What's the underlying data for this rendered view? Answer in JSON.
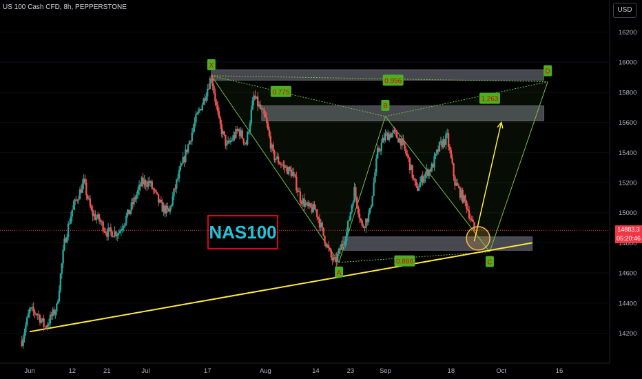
{
  "header": {
    "symbol": "US 100 Cash CFD, 8h, PEPPERSTONE",
    "currency": "USD"
  },
  "price_tag": {
    "last_price": "14883.3",
    "countdown": "05:20:46"
  },
  "label": "NAS100",
  "colors": {
    "background": "#000000",
    "up_candle": "#26a69a",
    "down_candle": "#ef5350",
    "trendline": "#ffeb3b",
    "pattern": "#76c442",
    "zone": "#7f8290",
    "last_price": "#f23645"
  },
  "chart_data": {
    "type": "candlestick",
    "title": "US 100 Cash CFD, 8h, PEPPERSTONE",
    "ylim": [
      14000,
      16300
    ],
    "y_ticks": [
      14200,
      14400,
      14600,
      14800,
      15000,
      15200,
      15400,
      15600,
      15800,
      16000,
      16200
    ],
    "x_ticks": [
      {
        "label": "Jun",
        "x": "2023-06-01"
      },
      {
        "label": "12",
        "x": "2023-06-12"
      },
      {
        "label": "21",
        "x": "2023-06-21"
      },
      {
        "label": "Jul",
        "x": "2023-07-01"
      },
      {
        "label": "17",
        "x": "2023-07-17"
      },
      {
        "label": "Aug",
        "x": "2023-08-01"
      },
      {
        "label": "14",
        "x": "2023-08-14"
      },
      {
        "label": "23",
        "x": "2023-08-23"
      },
      {
        "label": "Sep",
        "x": "2023-09-01"
      },
      {
        "label": "18",
        "x": "2023-09-18"
      },
      {
        "label": "Oct",
        "x": "2023-10-01"
      },
      {
        "label": "16",
        "x": "2023-10-16"
      }
    ],
    "price_path": [
      [
        "2023-05-30",
        14150
      ],
      [
        "2023-06-01",
        14350
      ],
      [
        "2023-06-03",
        14330
      ],
      [
        "2023-06-05",
        14240
      ],
      [
        "2023-06-08",
        14370
      ],
      [
        "2023-06-10",
        14800
      ],
      [
        "2023-06-12",
        15020
      ],
      [
        "2023-06-15",
        15200
      ],
      [
        "2023-06-17",
        15000
      ],
      [
        "2023-06-19",
        14950
      ],
      [
        "2023-06-21",
        14870
      ],
      [
        "2023-06-24",
        14870
      ],
      [
        "2023-06-27",
        15020
      ],
      [
        "2023-06-30",
        15200
      ],
      [
        "2023-07-02",
        15200
      ],
      [
        "2023-07-05",
        15040
      ],
      [
        "2023-07-07",
        15000
      ],
      [
        "2023-07-09",
        15200
      ],
      [
        "2023-07-12",
        15450
      ],
      [
        "2023-07-14",
        15620
      ],
      [
        "2023-07-16",
        15750
      ],
      [
        "2023-07-18",
        15910
      ],
      [
        "2023-07-20",
        15600
      ],
      [
        "2023-07-22",
        15440
      ],
      [
        "2023-07-25",
        15550
      ],
      [
        "2023-07-27",
        15460
      ],
      [
        "2023-07-29",
        15770
      ],
      [
        "2023-08-01",
        15620
      ],
      [
        "2023-08-03",
        15380
      ],
      [
        "2023-08-06",
        15300
      ],
      [
        "2023-08-08",
        15260
      ],
      [
        "2023-08-10",
        15100
      ],
      [
        "2023-08-12",
        15030
      ],
      [
        "2023-08-14",
        15020
      ],
      [
        "2023-08-16",
        14850
      ],
      [
        "2023-08-18",
        14700
      ],
      [
        "2023-08-19",
        14670
      ],
      [
        "2023-08-21",
        14800
      ],
      [
        "2023-08-22",
        14870
      ],
      [
        "2023-08-24",
        15150
      ],
      [
        "2023-08-26",
        14900
      ],
      [
        "2023-08-28",
        15000
      ],
      [
        "2023-08-30",
        15400
      ],
      [
        "2023-09-01",
        15510
      ],
      [
        "2023-09-03",
        15530
      ],
      [
        "2023-09-05",
        15480
      ],
      [
        "2023-09-07",
        15350
      ],
      [
        "2023-09-09",
        15150
      ],
      [
        "2023-09-11",
        15250
      ],
      [
        "2023-09-13",
        15300
      ],
      [
        "2023-09-15",
        15440
      ],
      [
        "2023-09-17",
        15500
      ],
      [
        "2023-09-19",
        15200
      ],
      [
        "2023-09-20",
        15150
      ],
      [
        "2023-09-22",
        15050
      ],
      [
        "2023-09-24",
        14883
      ]
    ],
    "last_price": 14883.3,
    "zones": [
      {
        "from": "2023-07-18",
        "to": "2023-10-12",
        "low": 15880,
        "high": 15950
      },
      {
        "from": "2023-07-31",
        "to": "2023-10-12",
        "low": 15610,
        "high": 15710
      },
      {
        "from": "2023-08-21",
        "to": "2023-10-09",
        "low": 14750,
        "high": 14840
      }
    ],
    "trendline": [
      [
        "2023-06-01",
        14210
      ],
      [
        "2023-10-09",
        14800
      ]
    ],
    "pattern_points": [
      {
        "label": "X",
        "x": "2023-07-18",
        "y": 15910
      },
      {
        "label": "A",
        "x": "2023-08-20",
        "y": 14670
      },
      {
        "label": "B",
        "x": "2023-09-01",
        "y": 15640
      },
      {
        "label": "C",
        "x": "2023-09-28",
        "y": 14740
      },
      {
        "label": "D",
        "x": "2023-10-13",
        "y": 15870
      }
    ],
    "ratios": [
      {
        "label": "0.775",
        "x": "2023-08-05",
        "y": 15805
      },
      {
        "label": "0.956",
        "x": "2023-09-03",
        "y": 15880
      },
      {
        "label": "1.263",
        "x": "2023-09-28",
        "y": 15760
      },
      {
        "label": "0.886",
        "x": "2023-09-06",
        "y": 14680
      }
    ],
    "projection_arrow": [
      [
        "2023-09-24",
        14810
      ],
      [
        "2023-10-01",
        15600
      ]
    ],
    "target_circle": {
      "x": "2023-09-25",
      "y": 14830
    }
  }
}
